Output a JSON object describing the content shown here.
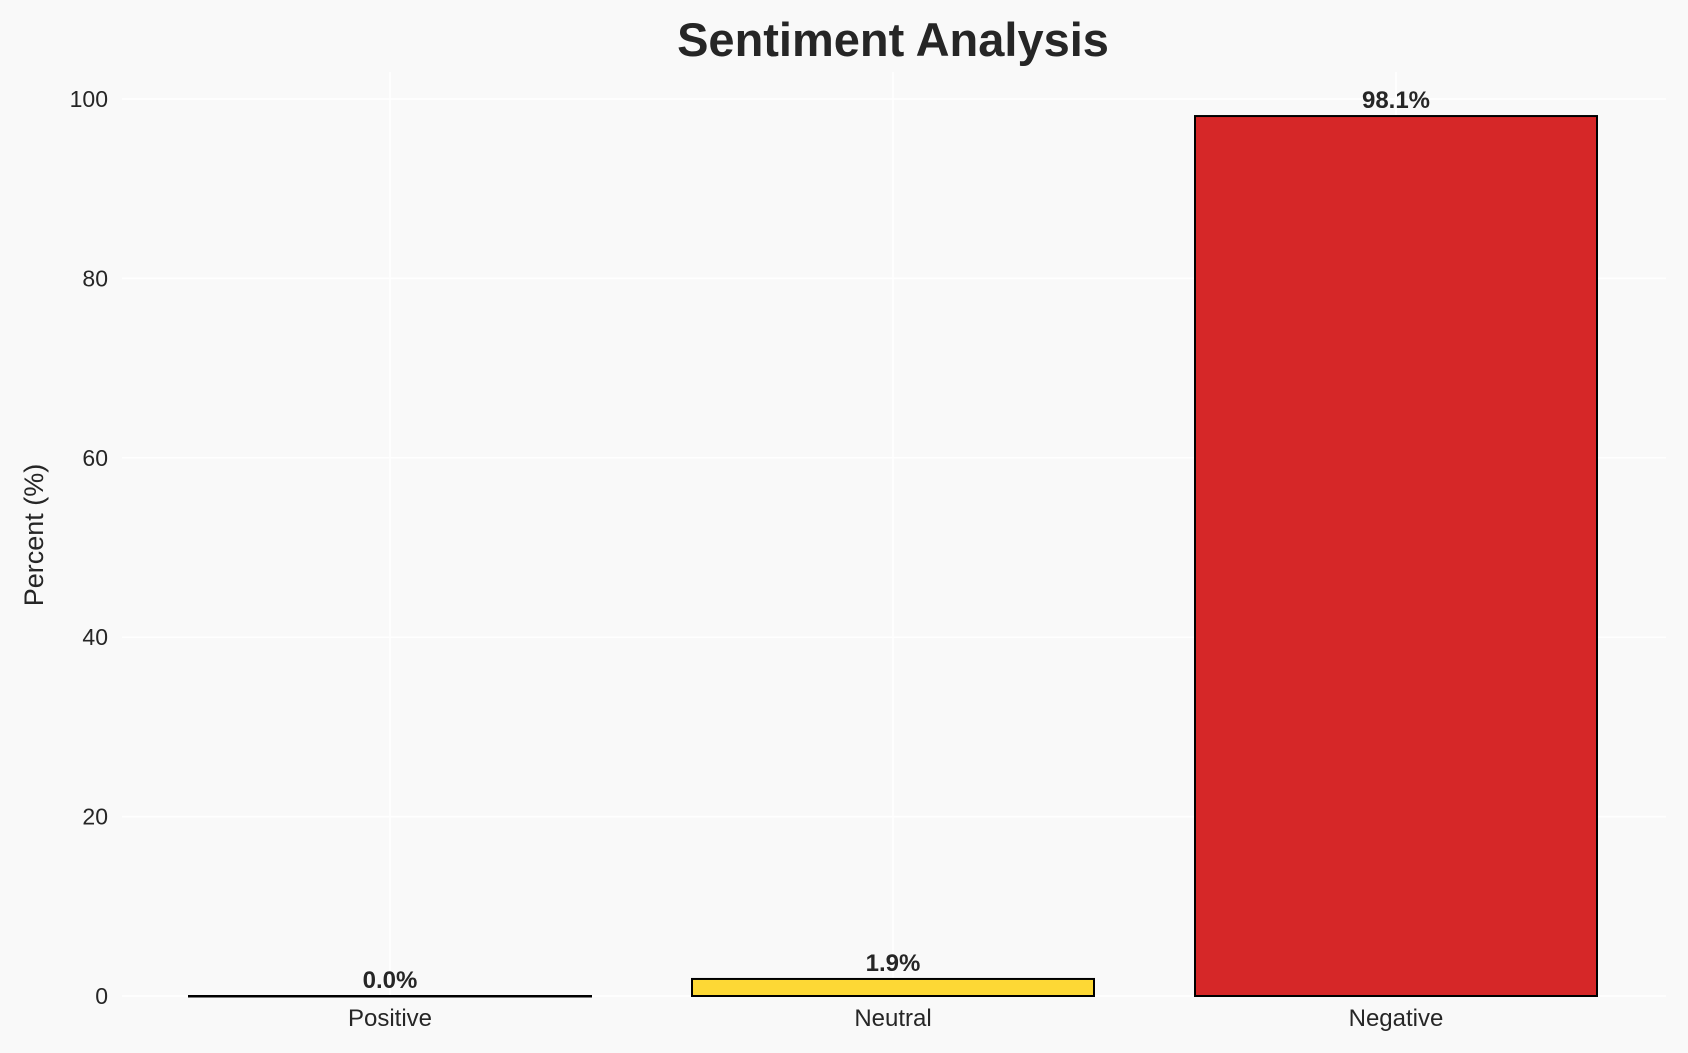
{
  "chart_data": {
    "type": "bar",
    "title": "Sentiment Analysis",
    "xlabel": "",
    "ylabel": "Percent (%)",
    "categories": [
      "Positive",
      "Neutral",
      "Negative"
    ],
    "values": [
      0.0,
      1.9,
      98.1
    ],
    "data_labels": [
      "0.0%",
      "1.9%",
      "98.1%"
    ],
    "colors": [
      "#2ca02c",
      "#fdd835",
      "#d62728"
    ],
    "edge_color": "#000000",
    "ylim": [
      0,
      103
    ],
    "yticks": [
      0,
      20,
      40,
      60,
      80,
      100
    ],
    "grid": true,
    "background": "#f9f9f9",
    "grid_color": "#ffffff"
  }
}
